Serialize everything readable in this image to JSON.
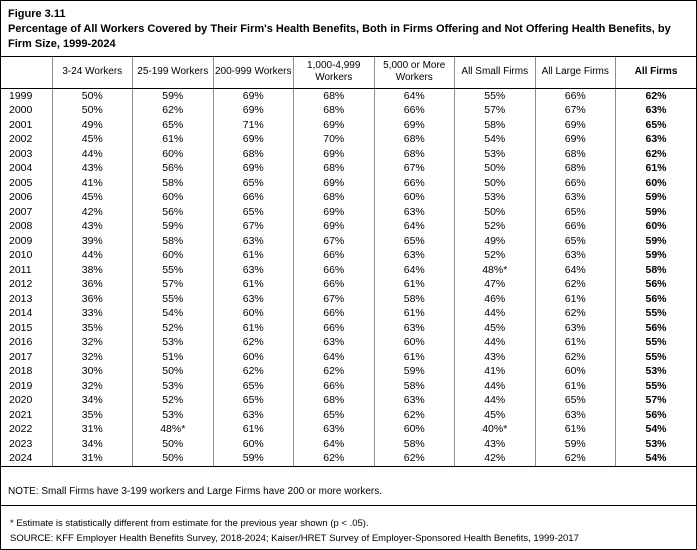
{
  "figure": {
    "label": "Figure 3.11",
    "title": "Percentage of All Workers Covered by Their Firm's Health Benefits, Both in Firms Offering and Not Offering Health Benefits, by Firm Size, 1999-2024"
  },
  "chart_data": {
    "type": "table",
    "title": "Percentage of All Workers Covered by Their Firm's Health Benefits, Both in Firms Offering and Not Offering Health Benefits, by Firm Size, 1999-2024",
    "columns": [
      "3-24 Workers",
      "25-199 Workers",
      "200-999 Workers",
      "1,000-4,999 Workers",
      "5,000 or More Workers",
      "All Small Firms",
      "All Large Firms",
      "All Firms"
    ],
    "rows": [
      {
        "year": "1999",
        "values": [
          "50%",
          "59%",
          "69%",
          "68%",
          "64%",
          "55%",
          "66%",
          "62%"
        ]
      },
      {
        "year": "2000",
        "values": [
          "50%",
          "62%",
          "69%",
          "68%",
          "66%",
          "57%",
          "67%",
          "63%"
        ]
      },
      {
        "year": "2001",
        "values": [
          "49%",
          "65%",
          "71%",
          "69%",
          "69%",
          "58%",
          "69%",
          "65%"
        ]
      },
      {
        "year": "2002",
        "values": [
          "45%",
          "61%",
          "69%",
          "70%",
          "68%",
          "54%",
          "69%",
          "63%"
        ]
      },
      {
        "year": "2003",
        "values": [
          "44%",
          "60%",
          "68%",
          "69%",
          "68%",
          "53%",
          "68%",
          "62%"
        ]
      },
      {
        "year": "2004",
        "values": [
          "43%",
          "56%",
          "69%",
          "68%",
          "67%",
          "50%",
          "68%",
          "61%"
        ]
      },
      {
        "year": "2005",
        "values": [
          "41%",
          "58%",
          "65%",
          "69%",
          "66%",
          "50%",
          "66%",
          "60%"
        ]
      },
      {
        "year": "2006",
        "values": [
          "45%",
          "60%",
          "66%",
          "68%",
          "60%",
          "53%",
          "63%",
          "59%"
        ]
      },
      {
        "year": "2007",
        "values": [
          "42%",
          "56%",
          "65%",
          "69%",
          "63%",
          "50%",
          "65%",
          "59%"
        ]
      },
      {
        "year": "2008",
        "values": [
          "43%",
          "59%",
          "67%",
          "69%",
          "64%",
          "52%",
          "66%",
          "60%"
        ]
      },
      {
        "year": "2009",
        "values": [
          "39%",
          "58%",
          "63%",
          "67%",
          "65%",
          "49%",
          "65%",
          "59%"
        ]
      },
      {
        "year": "2010",
        "values": [
          "44%",
          "60%",
          "61%",
          "66%",
          "63%",
          "52%",
          "63%",
          "59%"
        ]
      },
      {
        "year": "2011",
        "values": [
          "38%",
          "55%",
          "63%",
          "66%",
          "64%",
          "48%*",
          "64%",
          "58%"
        ]
      },
      {
        "year": "2012",
        "values": [
          "36%",
          "57%",
          "61%",
          "66%",
          "61%",
          "47%",
          "62%",
          "56%"
        ]
      },
      {
        "year": "2013",
        "values": [
          "36%",
          "55%",
          "63%",
          "67%",
          "58%",
          "46%",
          "61%",
          "56%"
        ]
      },
      {
        "year": "2014",
        "values": [
          "33%",
          "54%",
          "60%",
          "66%",
          "61%",
          "44%",
          "62%",
          "55%"
        ]
      },
      {
        "year": "2015",
        "values": [
          "35%",
          "52%",
          "61%",
          "66%",
          "63%",
          "45%",
          "63%",
          "56%"
        ]
      },
      {
        "year": "2016",
        "values": [
          "32%",
          "53%",
          "62%",
          "63%",
          "60%",
          "44%",
          "61%",
          "55%"
        ]
      },
      {
        "year": "2017",
        "values": [
          "32%",
          "51%",
          "60%",
          "64%",
          "61%",
          "43%",
          "62%",
          "55%"
        ]
      },
      {
        "year": "2018",
        "values": [
          "30%",
          "50%",
          "62%",
          "62%",
          "59%",
          "41%",
          "60%",
          "53%"
        ]
      },
      {
        "year": "2019",
        "values": [
          "32%",
          "53%",
          "65%",
          "66%",
          "58%",
          "44%",
          "61%",
          "55%"
        ]
      },
      {
        "year": "2020",
        "values": [
          "34%",
          "52%",
          "65%",
          "68%",
          "63%",
          "44%",
          "65%",
          "57%"
        ]
      },
      {
        "year": "2021",
        "values": [
          "35%",
          "53%",
          "63%",
          "65%",
          "62%",
          "45%",
          "63%",
          "56%"
        ]
      },
      {
        "year": "2022",
        "values": [
          "31%",
          "48%*",
          "61%",
          "63%",
          "60%",
          "40%*",
          "61%",
          "54%"
        ]
      },
      {
        "year": "2023",
        "values": [
          "34%",
          "50%",
          "60%",
          "64%",
          "58%",
          "43%",
          "59%",
          "53%"
        ]
      },
      {
        "year": "2024",
        "values": [
          "31%",
          "50%",
          "59%",
          "62%",
          "62%",
          "42%",
          "62%",
          "54%"
        ]
      }
    ]
  },
  "notes": {
    "note": "NOTE: Small Firms have 3-199 workers and Large Firms have 200 or more workers.",
    "footnote": "* Estimate is statistically different from estimate for the previous year shown (p < .05).",
    "source": "SOURCE: KFF Employer Health Benefits Survey, 2018-2024; Kaiser/HRET Survey of Employer-Sponsored Health Benefits, 1999-2017"
  }
}
